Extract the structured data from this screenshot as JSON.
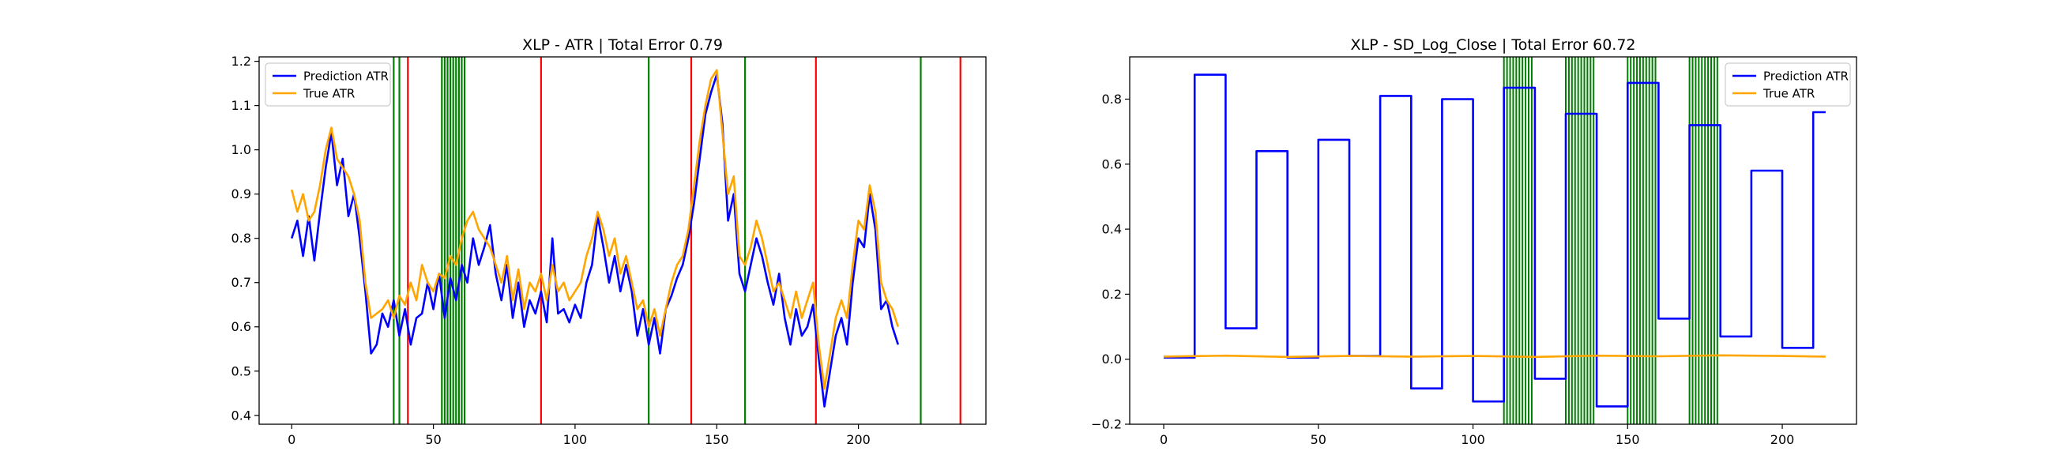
{
  "chart_data": [
    {
      "type": "line",
      "title": "XLP - ATR | Total Error 0.79",
      "xlabel": "",
      "ylabel": "",
      "xlim": [
        -11.5,
        245
      ],
      "ylim": [
        0.38,
        1.21
      ],
      "xticks": [
        0,
        50,
        100,
        150,
        200
      ],
      "yticks": [
        0.4,
        0.5,
        0.6,
        0.7,
        0.8,
        0.9,
        1.0,
        1.1,
        1.2
      ],
      "ytick_labels": [
        "0.4",
        "0.5",
        "0.6",
        "0.7",
        "0.8",
        "0.9",
        "1.0",
        "1.1",
        "1.2"
      ],
      "legend_position": "top-left",
      "grid": false,
      "series": [
        {
          "name": "Prediction ATR",
          "color": "#0000ff",
          "x": [
            0,
            2,
            4,
            6,
            8,
            10,
            12,
            14,
            16,
            18,
            20,
            22,
            24,
            26,
            28,
            30,
            32,
            34,
            36,
            38,
            40,
            42,
            44,
            46,
            48,
            50,
            52,
            54,
            56,
            58,
            60,
            62,
            64,
            66,
            68,
            70,
            72,
            74,
            76,
            78,
            80,
            82,
            84,
            86,
            88,
            90,
            92,
            94,
            96,
            98,
            100,
            102,
            104,
            106,
            108,
            110,
            112,
            114,
            116,
            118,
            120,
            122,
            124,
            126,
            128,
            130,
            132,
            134,
            136,
            138,
            140,
            142,
            144,
            146,
            148,
            150,
            152,
            154,
            156,
            158,
            160,
            162,
            164,
            166,
            168,
            170,
            172,
            174,
            176,
            178,
            180,
            182,
            184,
            186,
            188,
            190,
            192,
            194,
            196,
            198,
            200,
            202,
            204,
            206,
            208,
            210,
            212,
            214
          ],
          "y": [
            0.8,
            0.84,
            0.76,
            0.85,
            0.75,
            0.86,
            0.96,
            1.04,
            0.92,
            0.98,
            0.85,
            0.9,
            0.8,
            0.68,
            0.54,
            0.56,
            0.63,
            0.6,
            0.66,
            0.58,
            0.64,
            0.56,
            0.62,
            0.63,
            0.7,
            0.64,
            0.72,
            0.62,
            0.71,
            0.66,
            0.74,
            0.7,
            0.8,
            0.74,
            0.78,
            0.83,
            0.72,
            0.66,
            0.74,
            0.62,
            0.7,
            0.6,
            0.66,
            0.63,
            0.68,
            0.61,
            0.8,
            0.63,
            0.64,
            0.61,
            0.65,
            0.62,
            0.7,
            0.74,
            0.85,
            0.78,
            0.7,
            0.76,
            0.68,
            0.74,
            0.68,
            0.58,
            0.64,
            0.56,
            0.62,
            0.54,
            0.64,
            0.67,
            0.71,
            0.74,
            0.8,
            0.88,
            0.98,
            1.08,
            1.13,
            1.17,
            1.06,
            0.84,
            0.9,
            0.72,
            0.68,
            0.74,
            0.8,
            0.76,
            0.7,
            0.65,
            0.72,
            0.62,
            0.56,
            0.64,
            0.58,
            0.6,
            0.65,
            0.53,
            0.42,
            0.5,
            0.58,
            0.62,
            0.56,
            0.7,
            0.8,
            0.78,
            0.9,
            0.82,
            0.64,
            0.66,
            0.6,
            0.56
          ]
        },
        {
          "name": "True ATR",
          "color": "#ffa500",
          "x": [
            0,
            2,
            4,
            6,
            8,
            10,
            12,
            14,
            16,
            18,
            20,
            22,
            24,
            26,
            28,
            30,
            32,
            34,
            36,
            38,
            40,
            42,
            44,
            46,
            48,
            50,
            52,
            54,
            56,
            58,
            60,
            62,
            64,
            66,
            68,
            70,
            72,
            74,
            76,
            78,
            80,
            82,
            84,
            86,
            88,
            90,
            92,
            94,
            96,
            98,
            100,
            102,
            104,
            106,
            108,
            110,
            112,
            114,
            116,
            118,
            120,
            122,
            124,
            126,
            128,
            130,
            132,
            134,
            136,
            138,
            140,
            142,
            144,
            146,
            148,
            150,
            152,
            154,
            156,
            158,
            160,
            162,
            164,
            166,
            168,
            170,
            172,
            174,
            176,
            178,
            180,
            182,
            184,
            186,
            188,
            190,
            192,
            194,
            196,
            198,
            200,
            202,
            204,
            206,
            208,
            210,
            212,
            214
          ],
          "y": [
            0.91,
            0.86,
            0.9,
            0.84,
            0.86,
            0.92,
            1.0,
            1.05,
            0.98,
            0.96,
            0.94,
            0.9,
            0.84,
            0.7,
            0.62,
            0.63,
            0.64,
            0.66,
            0.62,
            0.67,
            0.65,
            0.7,
            0.66,
            0.74,
            0.7,
            0.68,
            0.72,
            0.71,
            0.76,
            0.74,
            0.8,
            0.84,
            0.86,
            0.82,
            0.8,
            0.78,
            0.74,
            0.7,
            0.76,
            0.66,
            0.73,
            0.64,
            0.7,
            0.68,
            0.72,
            0.66,
            0.74,
            0.68,
            0.7,
            0.66,
            0.68,
            0.7,
            0.76,
            0.8,
            0.86,
            0.82,
            0.76,
            0.8,
            0.72,
            0.76,
            0.7,
            0.64,
            0.66,
            0.6,
            0.64,
            0.58,
            0.64,
            0.7,
            0.74,
            0.76,
            0.82,
            0.92,
            1.02,
            1.1,
            1.16,
            1.18,
            1.04,
            0.9,
            0.94,
            0.76,
            0.74,
            0.78,
            0.84,
            0.8,
            0.74,
            0.68,
            0.7,
            0.66,
            0.62,
            0.68,
            0.62,
            0.66,
            0.7,
            0.56,
            0.46,
            0.54,
            0.62,
            0.66,
            0.62,
            0.74,
            0.84,
            0.82,
            0.92,
            0.86,
            0.7,
            0.66,
            0.64,
            0.6
          ]
        }
      ],
      "vlines": [
        {
          "x": 36,
          "color": "#008000"
        },
        {
          "x": 38,
          "color": "#008000"
        },
        {
          "x": 41,
          "color": "#ff0000"
        },
        {
          "x": 53,
          "color": "#008000"
        },
        {
          "x": 54,
          "color": "#008000"
        },
        {
          "x": 55,
          "color": "#008000"
        },
        {
          "x": 56,
          "color": "#008000"
        },
        {
          "x": 57,
          "color": "#008000"
        },
        {
          "x": 58,
          "color": "#008000"
        },
        {
          "x": 59,
          "color": "#008000"
        },
        {
          "x": 60,
          "color": "#008000"
        },
        {
          "x": 61,
          "color": "#008000"
        },
        {
          "x": 88,
          "color": "#ff0000"
        },
        {
          "x": 126,
          "color": "#008000"
        },
        {
          "x": 141,
          "color": "#ff0000"
        },
        {
          "x": 160,
          "color": "#008000"
        },
        {
          "x": 185,
          "color": "#ff0000"
        },
        {
          "x": 222,
          "color": "#008000"
        },
        {
          "x": 236,
          "color": "#ff0000"
        }
      ]
    },
    {
      "type": "line",
      "title": "XLP - SD_Log_Close | Total Error 60.72",
      "xlabel": "",
      "ylabel": "",
      "xlim": [
        -11,
        224
      ],
      "ylim": [
        -0.2,
        0.93
      ],
      "xticks": [
        0,
        50,
        100,
        150,
        200
      ],
      "yticks": [
        -0.2,
        0.0,
        0.2,
        0.4,
        0.6,
        0.8
      ],
      "ytick_labels": [
        "−0.2",
        "0.0",
        "0.2",
        "0.4",
        "0.6",
        "0.8"
      ],
      "legend_position": "top-right",
      "grid": false,
      "series": [
        {
          "name": "Prediction ATR",
          "color": "#0000ff",
          "segments": [
            {
              "x_start": 0,
              "x_end": 10,
              "value": 0.005
            },
            {
              "x_start": 10,
              "x_end": 20,
              "value": 0.875
            },
            {
              "x_start": 20,
              "x_end": 30,
              "value": 0.095
            },
            {
              "x_start": 30,
              "x_end": 40,
              "value": 0.64
            },
            {
              "x_start": 40,
              "x_end": 50,
              "value": 0.005
            },
            {
              "x_start": 50,
              "x_end": 60,
              "value": 0.675
            },
            {
              "x_start": 60,
              "x_end": 70,
              "value": 0.01
            },
            {
              "x_start": 70,
              "x_end": 80,
              "value": 0.81
            },
            {
              "x_start": 80,
              "x_end": 90,
              "value": -0.09
            },
            {
              "x_start": 90,
              "x_end": 100,
              "value": 0.8
            },
            {
              "x_start": 100,
              "x_end": 110,
              "value": -0.13
            },
            {
              "x_start": 110,
              "x_end": 120,
              "value": 0.835
            },
            {
              "x_start": 120,
              "x_end": 130,
              "value": -0.06
            },
            {
              "x_start": 130,
              "x_end": 140,
              "value": 0.755
            },
            {
              "x_start": 140,
              "x_end": 150,
              "value": -0.145
            },
            {
              "x_start": 150,
              "x_end": 160,
              "value": 0.85
            },
            {
              "x_start": 160,
              "x_end": 170,
              "value": 0.125
            },
            {
              "x_start": 170,
              "x_end": 180,
              "value": 0.72
            },
            {
              "x_start": 180,
              "x_end": 190,
              "value": 0.07
            },
            {
              "x_start": 190,
              "x_end": 200,
              "value": 0.58
            },
            {
              "x_start": 200,
              "x_end": 210,
              "value": 0.035
            },
            {
              "x_start": 210,
              "x_end": 214,
              "value": 0.76
            }
          ]
        },
        {
          "name": "True ATR",
          "color": "#ffa500",
          "x": [
            0,
            20,
            40,
            60,
            80,
            100,
            120,
            140,
            160,
            180,
            200,
            214
          ],
          "y": [
            0.008,
            0.011,
            0.007,
            0.01,
            0.008,
            0.01,
            0.007,
            0.011,
            0.009,
            0.012,
            0.01,
            0.008
          ]
        }
      ],
      "vline_bands": [
        {
          "x_start": 110,
          "x_end": 119,
          "step": 1,
          "color": "#008000"
        },
        {
          "x_start": 130,
          "x_end": 139,
          "step": 1,
          "color": "#008000"
        },
        {
          "x_start": 150,
          "x_end": 159,
          "step": 1,
          "color": "#008000"
        },
        {
          "x_start": 170,
          "x_end": 179,
          "step": 1,
          "color": "#008000"
        }
      ]
    }
  ]
}
